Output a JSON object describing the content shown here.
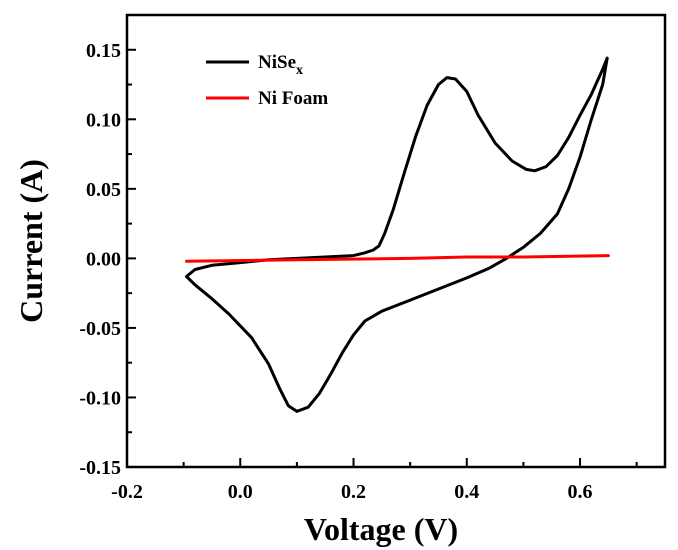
{
  "chart_data": {
    "type": "line",
    "title": "",
    "xlabel": "Voltage (V)",
    "ylabel": "Current (A)",
    "xlim": [
      -0.2,
      0.75
    ],
    "ylim": [
      -0.15,
      0.175
    ],
    "xticks": [
      -0.2,
      0.0,
      0.2,
      0.4,
      0.6
    ],
    "xtick_labels": [
      "-0.2",
      "0.0",
      "0.2",
      "0.4",
      "0.6"
    ],
    "yticks": [
      -0.15,
      -0.1,
      -0.05,
      0.0,
      0.05,
      0.1,
      0.15
    ],
    "ytick_labels": [
      "-0.15",
      "-0.10",
      "-0.05",
      "0.00",
      "0.05",
      "0.10",
      "0.15"
    ],
    "grid": false,
    "legend_position": "top-left",
    "series": [
      {
        "name": "NiSe",
        "name_subscript": "x",
        "color": "#000000",
        "points": [
          [
            -0.095,
            -0.013
          ],
          [
            -0.08,
            -0.008
          ],
          [
            -0.05,
            -0.005
          ],
          [
            0.0,
            -0.003
          ],
          [
            0.05,
            -0.001
          ],
          [
            0.1,
            0.0
          ],
          [
            0.15,
            0.001
          ],
          [
            0.2,
            0.002
          ],
          [
            0.22,
            0.004
          ],
          [
            0.235,
            0.006
          ],
          [
            0.245,
            0.009
          ],
          [
            0.255,
            0.018
          ],
          [
            0.27,
            0.035
          ],
          [
            0.29,
            0.062
          ],
          [
            0.31,
            0.088
          ],
          [
            0.33,
            0.11
          ],
          [
            0.35,
            0.125
          ],
          [
            0.365,
            0.13
          ],
          [
            0.38,
            0.129
          ],
          [
            0.4,
            0.12
          ],
          [
            0.42,
            0.103
          ],
          [
            0.45,
            0.083
          ],
          [
            0.48,
            0.07
          ],
          [
            0.505,
            0.064
          ],
          [
            0.52,
            0.063
          ],
          [
            0.54,
            0.066
          ],
          [
            0.56,
            0.074
          ],
          [
            0.58,
            0.087
          ],
          [
            0.6,
            0.103
          ],
          [
            0.62,
            0.118
          ],
          [
            0.64,
            0.136
          ],
          [
            0.648,
            0.144
          ],
          [
            0.64,
            0.125
          ],
          [
            0.62,
            0.1
          ],
          [
            0.6,
            0.073
          ],
          [
            0.58,
            0.05
          ],
          [
            0.56,
            0.032
          ],
          [
            0.53,
            0.018
          ],
          [
            0.5,
            0.008
          ],
          [
            0.47,
            0.0
          ],
          [
            0.44,
            -0.007
          ],
          [
            0.4,
            -0.014
          ],
          [
            0.35,
            -0.022
          ],
          [
            0.3,
            -0.03
          ],
          [
            0.25,
            -0.038
          ],
          [
            0.22,
            -0.045
          ],
          [
            0.2,
            -0.055
          ],
          [
            0.18,
            -0.068
          ],
          [
            0.16,
            -0.083
          ],
          [
            0.14,
            -0.097
          ],
          [
            0.12,
            -0.107
          ],
          [
            0.1,
            -0.11
          ],
          [
            0.085,
            -0.106
          ],
          [
            0.07,
            -0.094
          ],
          [
            0.05,
            -0.076
          ],
          [
            0.02,
            -0.057
          ],
          [
            -0.02,
            -0.04
          ],
          [
            -0.05,
            -0.029
          ],
          [
            -0.08,
            -0.019
          ],
          [
            -0.095,
            -0.013
          ]
        ]
      },
      {
        "name": "Ni Foam",
        "color": "#ff0000",
        "points": [
          [
            -0.095,
            -0.002
          ],
          [
            0.1,
            -0.001
          ],
          [
            0.3,
            0.0
          ],
          [
            0.4,
            0.001
          ],
          [
            0.5,
            0.001
          ],
          [
            0.65,
            0.002
          ]
        ]
      }
    ]
  }
}
